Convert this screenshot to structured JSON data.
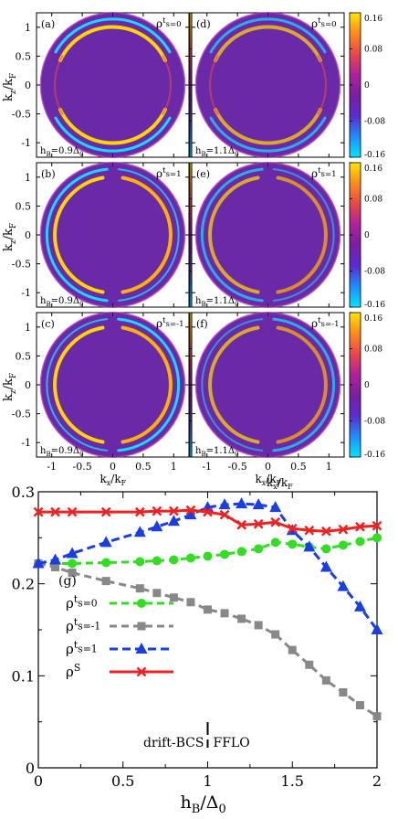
{
  "chart_data": [
    {
      "type": "heatmap",
      "panels": [
        {
          "id": "a",
          "tag": "(a)",
          "rho_base": "ρ",
          "rho_sup": "t",
          "rho_sub": "s=0",
          "hb_base": "h",
          "hb_sub": "B",
          "hb_rest": "=0.9Δ",
          "hb_end": "0",
          "pattern": "s0",
          "hb": 0.9
        },
        {
          "id": "d",
          "tag": "(d)",
          "rho_base": "ρ",
          "rho_sup": "t",
          "rho_sub": "s=0",
          "hb_base": "h",
          "hb_sub": "B",
          "hb_rest": "=1.1Δ",
          "hb_end": "0",
          "pattern": "s0w",
          "hb": 1.1
        },
        {
          "id": "b",
          "tag": "(b)",
          "rho_base": "ρ",
          "rho_sup": "t",
          "rho_sub": "s=1",
          "hb_base": "h",
          "hb_sub": "B",
          "hb_rest": "=0.9Δ",
          "hb_end": "0",
          "pattern": "s1",
          "hb": 0.9
        },
        {
          "id": "e",
          "tag": "(e)",
          "rho_base": "ρ",
          "rho_sup": "t",
          "rho_sub": "s=1",
          "hb_base": "h",
          "hb_sub": "B",
          "hb_rest": "=1.1Δ",
          "hb_end": "0",
          "pattern": "s1w",
          "hb": 1.1
        },
        {
          "id": "c",
          "tag": "(c)",
          "rho_base": "ρ",
          "rho_sup": "t",
          "rho_sub": "s=-1",
          "hb_base": "h",
          "hb_sub": "B",
          "hb_rest": "=0.9Δ",
          "hb_end": "0",
          "pattern": "sm1",
          "hb": 0.9
        },
        {
          "id": "f",
          "tag": "(f)",
          "rho_base": "ρ",
          "rho_sup": "t",
          "rho_sub": "s=-1",
          "hb_base": "h",
          "hb_sub": "B",
          "hb_rest": "=1.1Δ",
          "hb_end": "0",
          "pattern": "sm1w",
          "hb": 1.1
        }
      ],
      "xlabel_base": "k",
      "xlabel_sub": "x",
      "xlabel_mid": "/k",
      "xlabel_end": "F",
      "ylabel_base": "k",
      "ylabel_sub": "z",
      "ylabel_mid": "/k",
      "ylabel_end": "F",
      "x_ticks_left": [
        "-1",
        "-0.5",
        "0",
        "0.5",
        "1"
      ],
      "x_ticks_right": [
        "-1",
        "-0.5",
        "0",
        "0.5",
        "1"
      ],
      "y_ticks": [
        "1",
        "0.5",
        "0",
        "-0.5",
        "-1"
      ],
      "xlim": [
        -1.25,
        1.25
      ],
      "ylim": [
        -1.25,
        1.25
      ],
      "colorbar_ticks": [
        "0.16",
        "0.08",
        "0",
        "-0.08",
        "-0.16"
      ],
      "colorbar_range": [
        -0.16,
        0.16
      ],
      "colormap": [
        "#00e6ff",
        "#1f8cff",
        "#5b2bd1",
        "#7a1fa0",
        "#b0209c",
        "#e8474a",
        "#ff8a1c",
        "#ffe600"
      ],
      "disk_color": "#6a2aa8"
    },
    {
      "type": "line",
      "tag": "(g)",
      "xlabel_base": "h",
      "xlabel_sub": "B",
      "xlabel_mid": "/Δ",
      "xlabel_end": "0",
      "xlim": [
        0,
        2
      ],
      "ylim": [
        0,
        0.3
      ],
      "x_ticks": [
        "0",
        "0.5",
        "1",
        "1.5",
        "2"
      ],
      "y_ticks": [
        "0",
        "0.1",
        "0.2",
        "0.3"
      ],
      "x": [
        0,
        0.1,
        0.2,
        0.4,
        0.6,
        0.7,
        0.8,
        0.9,
        1.0,
        1.1,
        1.2,
        1.3,
        1.4,
        1.5,
        1.6,
        1.7,
        1.8,
        1.9,
        2.0
      ],
      "series": [
        {
          "name_base": "ρ",
          "name_sup": "t",
          "name_sub": "s=0",
          "color": "#33dd22",
          "marker": "circle",
          "dash": "8,5",
          "values": [
            0.222,
            0.222,
            0.222,
            0.223,
            0.224,
            0.225,
            0.226,
            0.228,
            0.23,
            0.232,
            0.235,
            0.238,
            0.245,
            0.243,
            0.24,
            0.238,
            0.242,
            0.246,
            0.25
          ]
        },
        {
          "name_base": "ρ",
          "name_sup": "t",
          "name_sub": "s=-1",
          "color": "#888888",
          "marker": "square",
          "dash": "8,5",
          "values": [
            0.222,
            0.218,
            0.212,
            0.203,
            0.195,
            0.19,
            0.185,
            0.18,
            0.172,
            0.168,
            0.162,
            0.155,
            0.145,
            0.128,
            0.112,
            0.095,
            0.082,
            0.068,
            0.056
          ]
        },
        {
          "name_base": "ρ",
          "name_sup": "t",
          "name_sub": "s=1",
          "color": "#1a3ee0",
          "marker": "triangle",
          "dash": "9,5",
          "values": [
            0.222,
            0.226,
            0.233,
            0.245,
            0.256,
            0.262,
            0.268,
            0.275,
            0.283,
            0.286,
            0.287,
            0.286,
            0.283,
            0.258,
            0.24,
            0.218,
            0.197,
            0.175,
            0.15
          ]
        },
        {
          "name_base": "ρ",
          "name_sup": "S",
          "name_sub": "",
          "color": "#ee2222",
          "marker": "x",
          "dash": "",
          "values": [
            0.278,
            0.278,
            0.278,
            0.278,
            0.278,
            0.279,
            0.279,
            0.28,
            0.278,
            0.275,
            0.264,
            0.265,
            0.267,
            0.26,
            0.258,
            0.257,
            0.259,
            0.262,
            0.263
          ]
        }
      ],
      "annotation_left": "drift-BCS",
      "annotation_right": "FFLO",
      "divider_x": 1.0
    }
  ]
}
